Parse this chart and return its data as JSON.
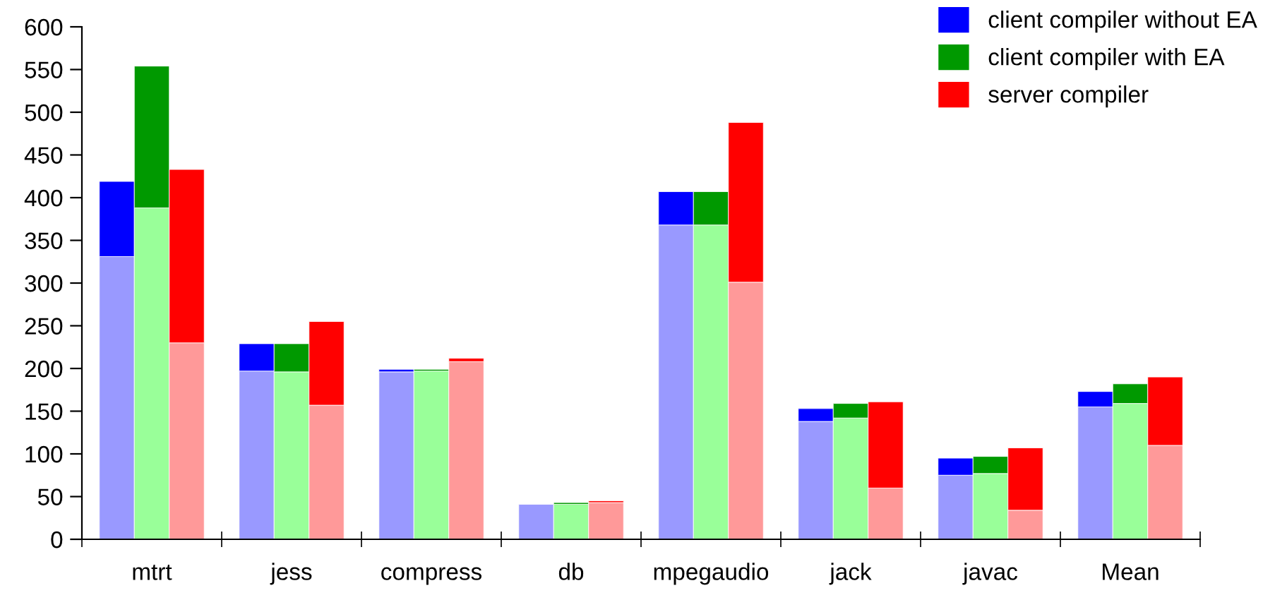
{
  "chart_data": {
    "type": "bar",
    "stacked": true,
    "categories": [
      null,
      "mtrt",
      null,
      null,
      null,
      "jess",
      null,
      null,
      null,
      "compress",
      null,
      null,
      null,
      "db",
      null,
      null,
      null,
      "mpegaudio",
      null,
      null,
      null,
      "jack",
      null,
      null,
      null,
      "javac",
      null,
      null,
      null,
      "Mean",
      null,
      null
    ],
    "series": [
      {
        "color": "#9999ff",
        "values": [
          331,
          null,
          null,
          null,
          197,
          null,
          null,
          null,
          196,
          null,
          null,
          null,
          41,
          null,
          null,
          null,
          368,
          null,
          null,
          null,
          138,
          null,
          null,
          null,
          75,
          null,
          null,
          null,
          155,
          null,
          null,
          null
        ]
      },
      {
        "name": "client compiler without EA",
        "color": "#0000ff",
        "values": [
          88,
          null,
          null,
          null,
          32,
          null,
          null,
          null,
          3,
          null,
          null,
          null,
          null,
          null,
          null,
          null,
          39,
          null,
          null,
          null,
          15,
          null,
          null,
          null,
          20,
          null,
          null,
          null,
          18,
          null,
          null,
          null
        ]
      },
      {
        "color": "#99ff99",
        "values": [
          null,
          388,
          null,
          null,
          null,
          196,
          null,
          null,
          null,
          197,
          null,
          null,
          null,
          41,
          null,
          null,
          null,
          368,
          null,
          null,
          null,
          142,
          null,
          null,
          null,
          77,
          null,
          null,
          null,
          159,
          null,
          null
        ]
      },
      {
        "name": "client compiler with EA",
        "color": "#009900",
        "values": [
          null,
          166,
          null,
          null,
          null,
          33,
          null,
          null,
          null,
          2,
          null,
          null,
          null,
          2,
          null,
          null,
          null,
          39,
          null,
          null,
          null,
          17,
          null,
          null,
          null,
          20,
          null,
          null,
          null,
          23,
          null,
          null
        ]
      },
      {
        "color": "#ff9999",
        "values": [
          null,
          null,
          230,
          null,
          null,
          null,
          157,
          null,
          null,
          null,
          208,
          null,
          null,
          null,
          43,
          null,
          null,
          null,
          301,
          null,
          null,
          null,
          60,
          null,
          null,
          null,
          34,
          null,
          null,
          null,
          110,
          null
        ]
      },
      {
        "name": "server compiler",
        "color": "#ff0000",
        "values": [
          null,
          null,
          203,
          null,
          null,
          null,
          98,
          null,
          null,
          null,
          4,
          null,
          null,
          null,
          2,
          null,
          null,
          null,
          187,
          null,
          null,
          null,
          101,
          null,
          null,
          null,
          73,
          null,
          null,
          null,
          80,
          null
        ]
      }
    ],
    "ylim": [
      0,
      600
    ],
    "yticks": [
      0,
      50,
      100,
      150,
      200,
      250,
      300,
      350,
      400,
      450,
      500,
      550,
      600
    ],
    "grid": false,
    "legend": "top right"
  }
}
